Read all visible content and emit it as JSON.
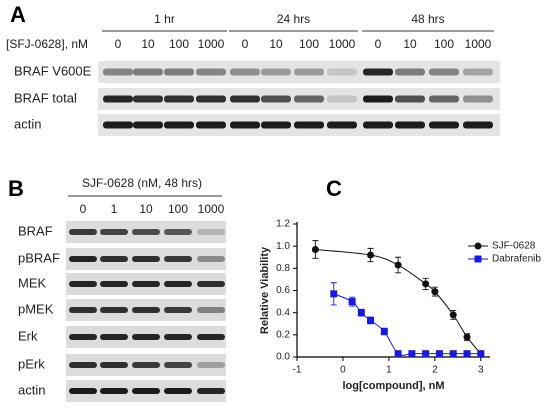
{
  "panel_a": {
    "letter": "A",
    "dose_label": "[SFJ-0628], nM",
    "conditions": [
      "1 hr",
      "24 hrs",
      "48 hrs"
    ],
    "doses": [
      "0",
      "10",
      "100",
      "1000"
    ],
    "rows": [
      "BRAF V600E",
      "BRAF total",
      "actin"
    ]
  },
  "panel_b": {
    "letter": "B",
    "header": "SJF-0628 (nM, 48 hrs)",
    "doses": [
      "0",
      "1",
      "10",
      "100",
      "1000"
    ],
    "rows": [
      "BRAF",
      "pBRAF",
      "MEK",
      "pMEK",
      "Erk",
      "pErk",
      "actin"
    ]
  },
  "chart_data": {
    "type": "scatter",
    "panel_letter": "C",
    "xlabel": "log[compound], nM",
    "ylabel": "Relative Viability",
    "xlim": [
      -1,
      3.2
    ],
    "xticks": [
      -1,
      0,
      1,
      2,
      3
    ],
    "ylim": [
      0,
      1.2
    ],
    "yticks": [
      {
        "value": 0,
        "label": "0.0"
      },
      {
        "value": 0.2,
        "label": "0.2"
      },
      {
        "value": 0.4,
        "label": "0.4"
      },
      {
        "value": 0.6,
        "label": "0.6"
      },
      {
        "value": 0.8,
        "label": "0.8"
      },
      {
        "value": 1,
        "label": "1.0"
      },
      {
        "value": 1.2,
        "label": "1.2"
      }
    ],
    "legend": "top-right",
    "series": [
      {
        "name": "SJF-0628",
        "color": "#111111",
        "marker": "circle",
        "x": [
          -0.6,
          0.6,
          1.2,
          1.8,
          2.0,
          2.4,
          2.7,
          3.0
        ],
        "values": [
          0.97,
          0.92,
          0.83,
          0.66,
          0.59,
          0.38,
          0.18,
          0.03
        ],
        "errors": [
          0.08,
          0.06,
          0.07,
          0.05,
          0.04,
          0.04,
          0.03,
          0.02
        ]
      },
      {
        "name": "Dabrafenib",
        "color": "#1a1ad6",
        "marker": "square",
        "x": [
          -0.2,
          0.2,
          0.4,
          0.6,
          0.9,
          1.2,
          1.5,
          1.8,
          2.1,
          2.4,
          2.7,
          3.0
        ],
        "values": [
          0.57,
          0.5,
          0.4,
          0.33,
          0.23,
          0.03,
          0.03,
          0.03,
          0.03,
          0.03,
          0.03,
          0.03
        ],
        "errors": [
          0.1,
          0.04,
          0.03,
          0.03,
          0.03,
          0.01,
          0.01,
          0.01,
          0.01,
          0.01,
          0.01,
          0.01
        ]
      }
    ]
  }
}
